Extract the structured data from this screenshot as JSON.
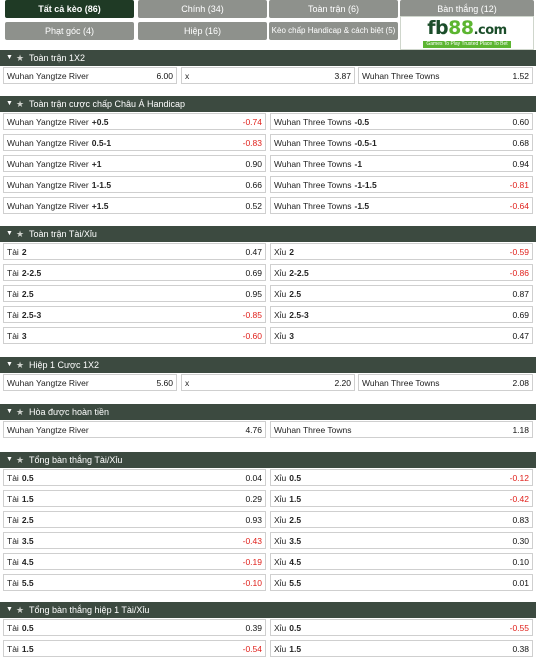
{
  "tabs": [
    {
      "label": "Tất cả kèo (86)",
      "active": true
    },
    {
      "label": "Chính (34)"
    },
    {
      "label": "Toàn trận (6)"
    },
    {
      "label": "Bàn thắng (12)"
    },
    {
      "label": "Phạt góc (4)"
    },
    {
      "label": "Hiệp (16)"
    },
    {
      "label": "Kèo chấp Handicap & cách biệt (5)"
    }
  ],
  "logo": {
    "text_fb": "fb",
    "text_88": "88",
    "text_com": ".com",
    "tagline": "Games To Play Trusted Place To Bet"
  },
  "colors": {
    "header_bg": "#3c4a40",
    "tab_bg": "#8e918c",
    "tab_active": "#1f3a25",
    "negative": "#e0201b",
    "logo_green": "#5cb531"
  },
  "sections": [
    {
      "title": "Toàn trận 1X2",
      "layout": "three",
      "rows": [
        [
          {
            "label": "Wuhan Yangtze River",
            "odd": "6.00"
          },
          {
            "label": "x",
            "odd": "3.87"
          },
          {
            "label": "Wuhan Three Towns",
            "odd": "1.52"
          }
        ]
      ]
    },
    {
      "title": "Toàn trận cược chấp Châu Á Handicap",
      "layout": "two",
      "rows": [
        [
          {
            "label": "Wuhan Yangtze River",
            "hcp": "+0.5",
            "odd": "-0.74"
          },
          {
            "label": "Wuhan Three Towns",
            "hcp": "-0.5",
            "odd": "0.60"
          }
        ],
        [
          {
            "label": "Wuhan Yangtze River",
            "hcp": "0.5-1",
            "odd": "-0.83"
          },
          {
            "label": "Wuhan Three Towns",
            "hcp": "-0.5-1",
            "odd": "0.68"
          }
        ],
        [
          {
            "label": "Wuhan Yangtze River",
            "hcp": "+1",
            "odd": "0.90"
          },
          {
            "label": "Wuhan Three Towns",
            "hcp": "-1",
            "odd": "0.94"
          }
        ],
        [
          {
            "label": "Wuhan Yangtze River",
            "hcp": "1-1.5",
            "odd": "0.66"
          },
          {
            "label": "Wuhan Three Towns",
            "hcp": "-1-1.5",
            "odd": "-0.81"
          }
        ],
        [
          {
            "label": "Wuhan Yangtze River",
            "hcp": "+1.5",
            "odd": "0.52"
          },
          {
            "label": "Wuhan Three Towns",
            "hcp": "-1.5",
            "odd": "-0.64"
          }
        ]
      ]
    },
    {
      "title": "Toàn trận Tài/Xỉu",
      "layout": "two",
      "rows": [
        [
          {
            "label": "Tài",
            "hcp": "2",
            "odd": "0.47"
          },
          {
            "label": "Xỉu",
            "hcp": "2",
            "odd": "-0.59"
          }
        ],
        [
          {
            "label": "Tài",
            "hcp": "2-2.5",
            "odd": "0.69"
          },
          {
            "label": "Xỉu",
            "hcp": "2-2.5",
            "odd": "-0.86"
          }
        ],
        [
          {
            "label": "Tài",
            "hcp": "2.5",
            "odd": "0.95"
          },
          {
            "label": "Xỉu",
            "hcp": "2.5",
            "odd": "0.87"
          }
        ],
        [
          {
            "label": "Tài",
            "hcp": "2.5-3",
            "odd": "-0.85"
          },
          {
            "label": "Xỉu",
            "hcp": "2.5-3",
            "odd": "0.69"
          }
        ],
        [
          {
            "label": "Tài",
            "hcp": "3",
            "odd": "-0.60"
          },
          {
            "label": "Xỉu",
            "hcp": "3",
            "odd": "0.47"
          }
        ]
      ]
    },
    {
      "title": "Hiệp 1 Cược 1X2",
      "layout": "three",
      "rows": [
        [
          {
            "label": "Wuhan Yangtze River",
            "odd": "5.60"
          },
          {
            "label": "x",
            "odd": "2.20"
          },
          {
            "label": "Wuhan Three Towns",
            "odd": "2.08"
          }
        ]
      ]
    },
    {
      "title": "Hòa được hoàn tiền",
      "layout": "two",
      "rows": [
        [
          {
            "label": "Wuhan Yangtze River",
            "odd": "4.76"
          },
          {
            "label": "Wuhan Three Towns",
            "odd": "1.18"
          }
        ]
      ]
    },
    {
      "title": "Tổng bàn thắng Tài/Xỉu",
      "layout": "two",
      "rows": [
        [
          {
            "label": "Tài",
            "hcp": "0.5",
            "odd": "0.04"
          },
          {
            "label": "Xỉu",
            "hcp": "0.5",
            "odd": "-0.12"
          }
        ],
        [
          {
            "label": "Tài",
            "hcp": "1.5",
            "odd": "0.29"
          },
          {
            "label": "Xỉu",
            "hcp": "1.5",
            "odd": "-0.42"
          }
        ],
        [
          {
            "label": "Tài",
            "hcp": "2.5",
            "odd": "0.93"
          },
          {
            "label": "Xỉu",
            "hcp": "2.5",
            "odd": "0.83"
          }
        ],
        [
          {
            "label": "Tài",
            "hcp": "3.5",
            "odd": "-0.43"
          },
          {
            "label": "Xỉu",
            "hcp": "3.5",
            "odd": "0.30"
          }
        ],
        [
          {
            "label": "Tài",
            "hcp": "4.5",
            "odd": "-0.19"
          },
          {
            "label": "Xỉu",
            "hcp": "4.5",
            "odd": "0.10"
          }
        ],
        [
          {
            "label": "Tài",
            "hcp": "5.5",
            "odd": "-0.10"
          },
          {
            "label": "Xỉu",
            "hcp": "5.5",
            "odd": "0.01"
          }
        ]
      ]
    },
    {
      "title": "Tổng bàn thắng hiệp 1 Tài/Xỉu",
      "layout": "two",
      "rows": [
        [
          {
            "label": "Tài",
            "hcp": "0.5",
            "odd": "0.39"
          },
          {
            "label": "Xỉu",
            "hcp": "0.5",
            "odd": "-0.55"
          }
        ],
        [
          {
            "label": "Tài",
            "hcp": "1.5",
            "odd": "-0.54"
          },
          {
            "label": "Xỉu",
            "hcp": "1.5",
            "odd": "0.38"
          }
        ]
      ]
    }
  ]
}
